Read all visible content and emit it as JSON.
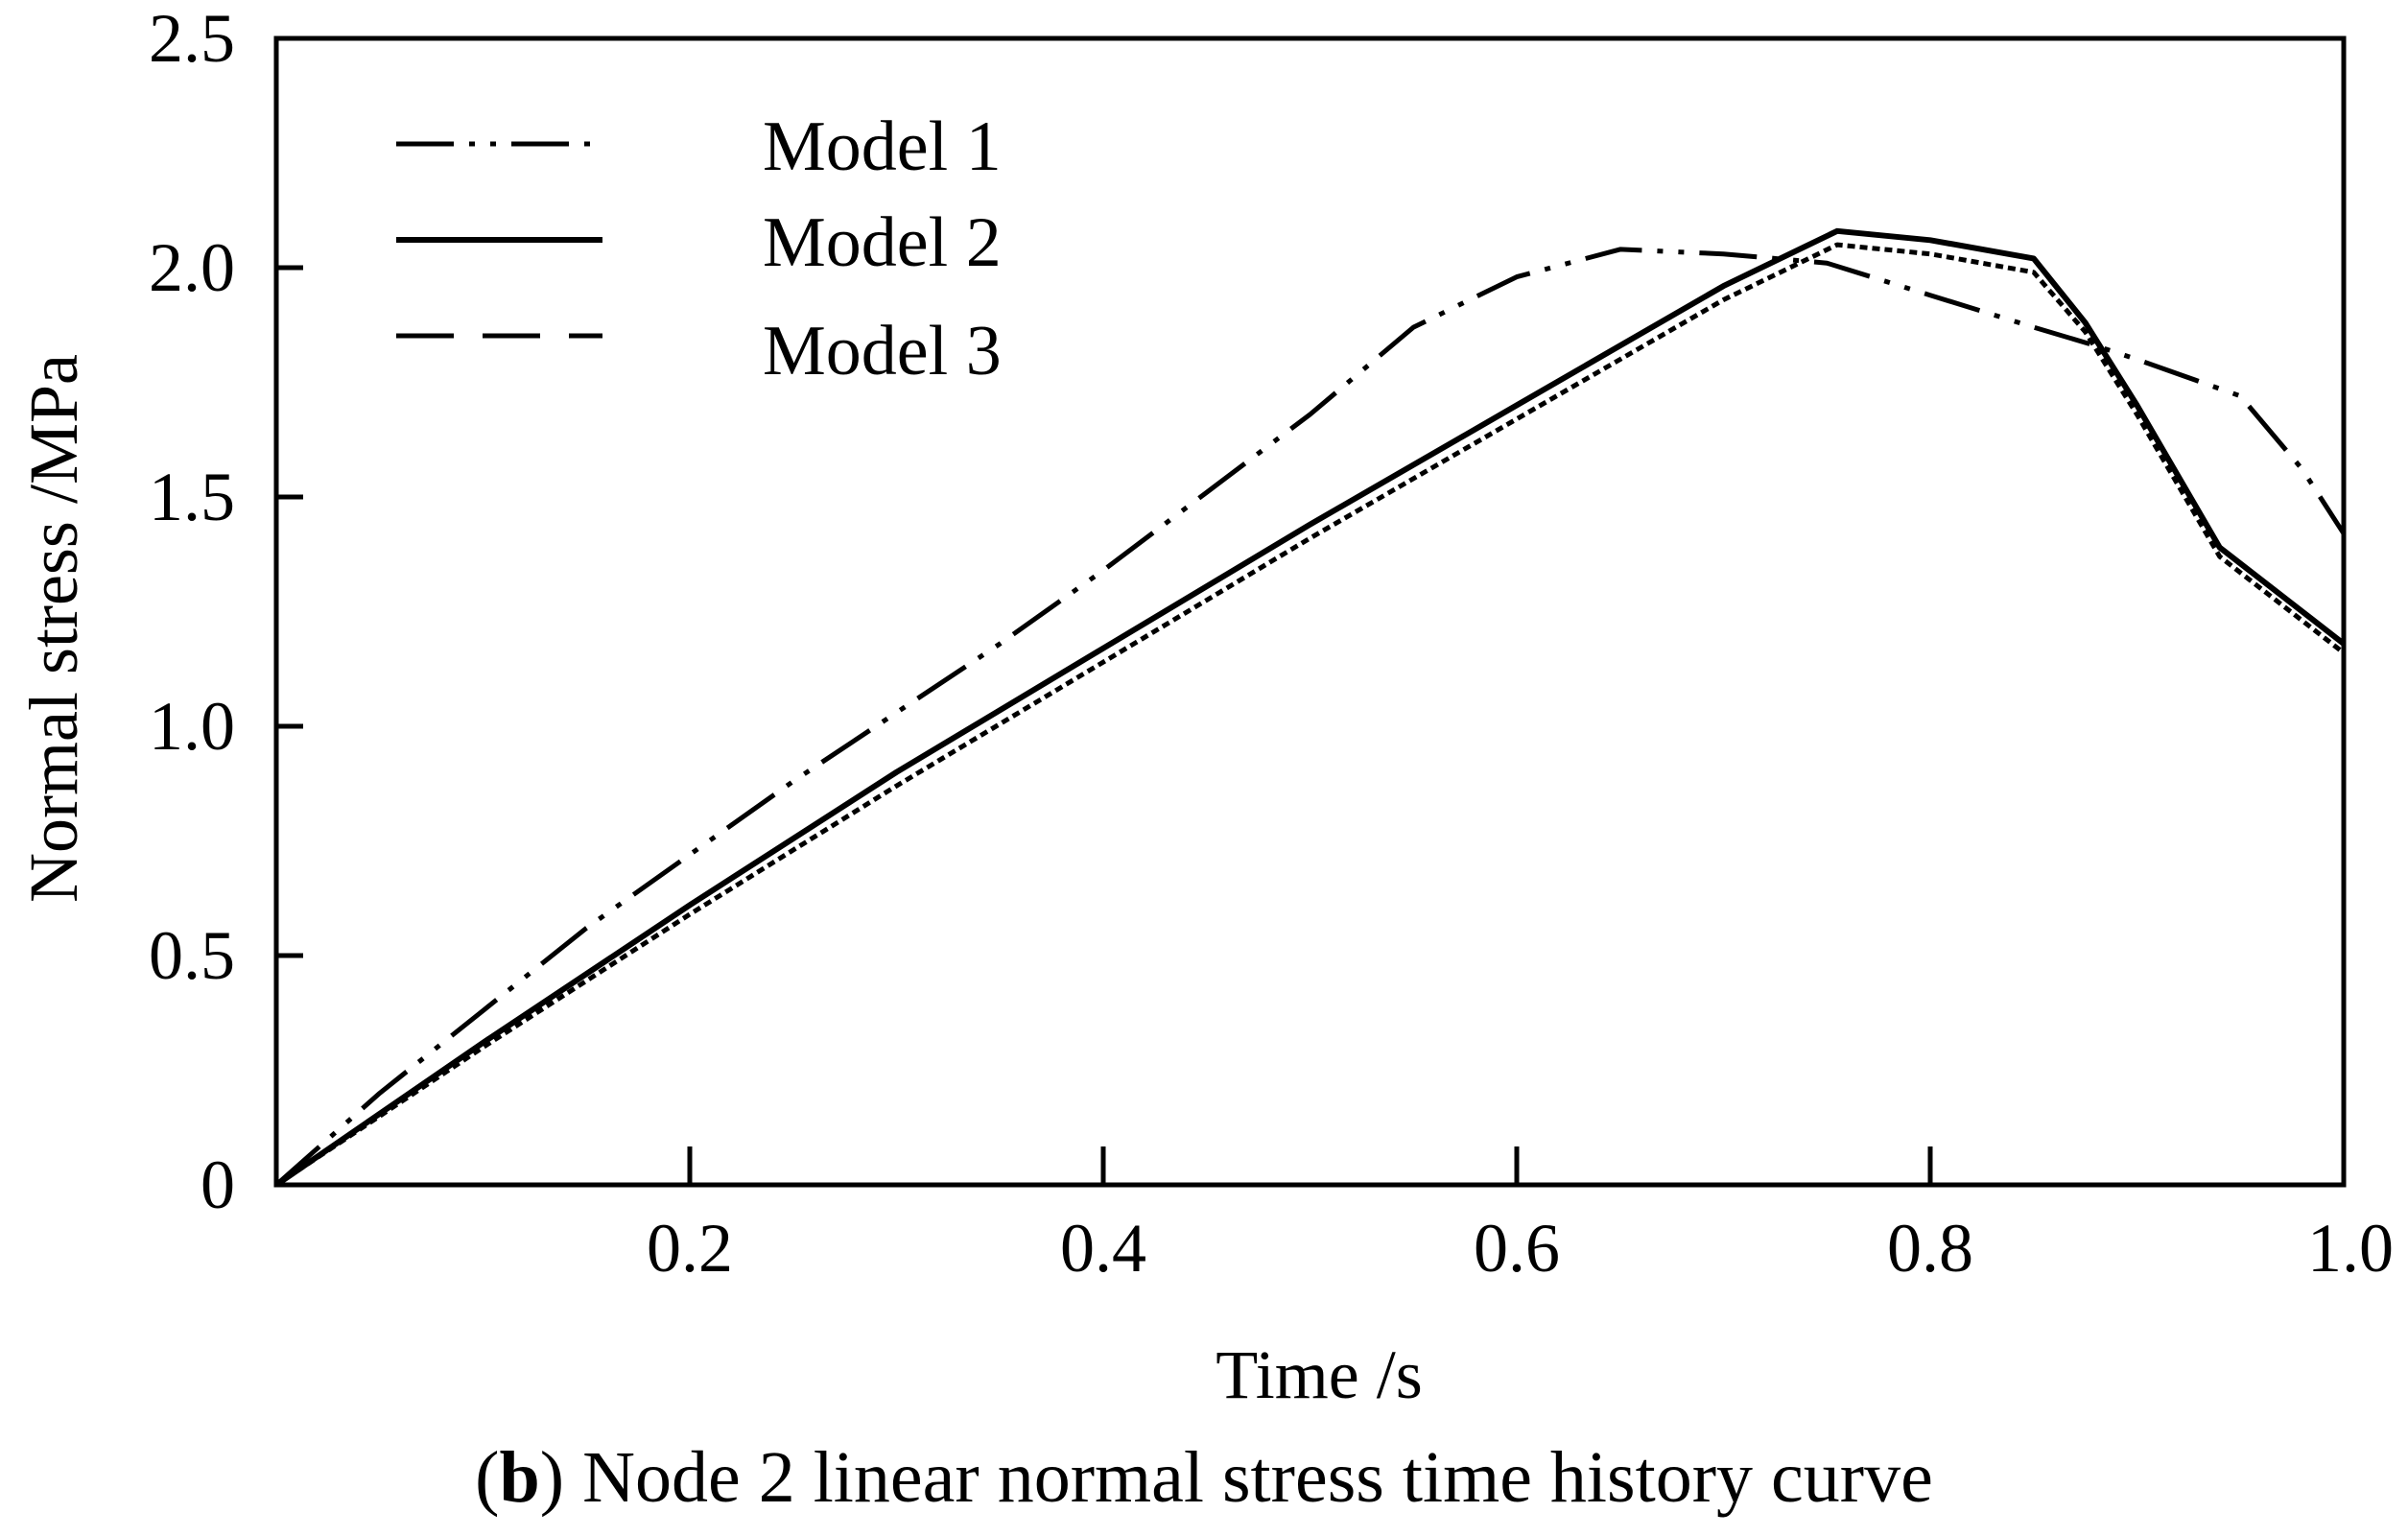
{
  "chart_data": {
    "type": "line",
    "title": "",
    "caption": {
      "open_paren": "(",
      "label": "b",
      "close_paren": ")",
      "text": " Node 2 linear normal stress time history curve"
    },
    "xlabel": "Time /s",
    "ylabel": "Normal stress /MPa",
    "xlim": [
      0,
      1.0
    ],
    "ylim": [
      0,
      2.5
    ],
    "x_ticks": [
      {
        "value": 0.2,
        "label": "0.2"
      },
      {
        "value": 0.4,
        "label": "0.4"
      },
      {
        "value": 0.6,
        "label": "0.6"
      },
      {
        "value": 0.8,
        "label": "0.8"
      },
      {
        "value": 1.0,
        "label": "1.0"
      }
    ],
    "y_ticks": [
      {
        "value": 0,
        "label": "0"
      },
      {
        "value": 0.5,
        "label": "0.5"
      },
      {
        "value": 1.0,
        "label": "1.0"
      },
      {
        "value": 1.5,
        "label": "1.5"
      },
      {
        "value": 2.0,
        "label": "2.0"
      },
      {
        "value": 2.5,
        "label": "2.5"
      }
    ],
    "grid": false,
    "legend_position": "top-left",
    "series": [
      {
        "name": "Model 1",
        "style": "dash-dot-dot",
        "x": [
          0,
          0.05,
          0.1,
          0.15,
          0.2,
          0.25,
          0.3,
          0.35,
          0.4,
          0.45,
          0.5,
          0.55,
          0.6,
          0.65,
          0.7,
          0.75,
          0.8,
          0.85,
          0.88,
          0.9,
          0.95,
          0.98,
          1.0
        ],
        "y": [
          0,
          0.2,
          0.38,
          0.56,
          0.72,
          0.88,
          1.03,
          1.18,
          1.34,
          1.51,
          1.68,
          1.87,
          1.98,
          2.04,
          2.03,
          2.01,
          1.94,
          1.87,
          1.83,
          1.8,
          1.72,
          1.56,
          1.42
        ]
      },
      {
        "name": "Model 2",
        "style": "solid",
        "x": [
          0,
          0.1,
          0.2,
          0.3,
          0.4,
          0.5,
          0.6,
          0.7,
          0.755,
          0.8,
          0.85,
          0.875,
          0.9,
          0.94,
          1.0
        ],
        "y": [
          0,
          0.31,
          0.61,
          0.9,
          1.17,
          1.44,
          1.7,
          1.96,
          2.08,
          2.06,
          2.02,
          1.88,
          1.7,
          1.39,
          1.18
        ]
      },
      {
        "name": "Model 3",
        "style": "dashed-fine",
        "x": [
          0,
          0.1,
          0.2,
          0.3,
          0.4,
          0.5,
          0.6,
          0.7,
          0.755,
          0.8,
          0.85,
          0.875,
          0.9,
          0.94,
          1.0
        ],
        "y": [
          0,
          0.3,
          0.59,
          0.87,
          1.14,
          1.41,
          1.67,
          1.93,
          2.05,
          2.03,
          1.99,
          1.86,
          1.68,
          1.37,
          1.16
        ]
      }
    ]
  }
}
